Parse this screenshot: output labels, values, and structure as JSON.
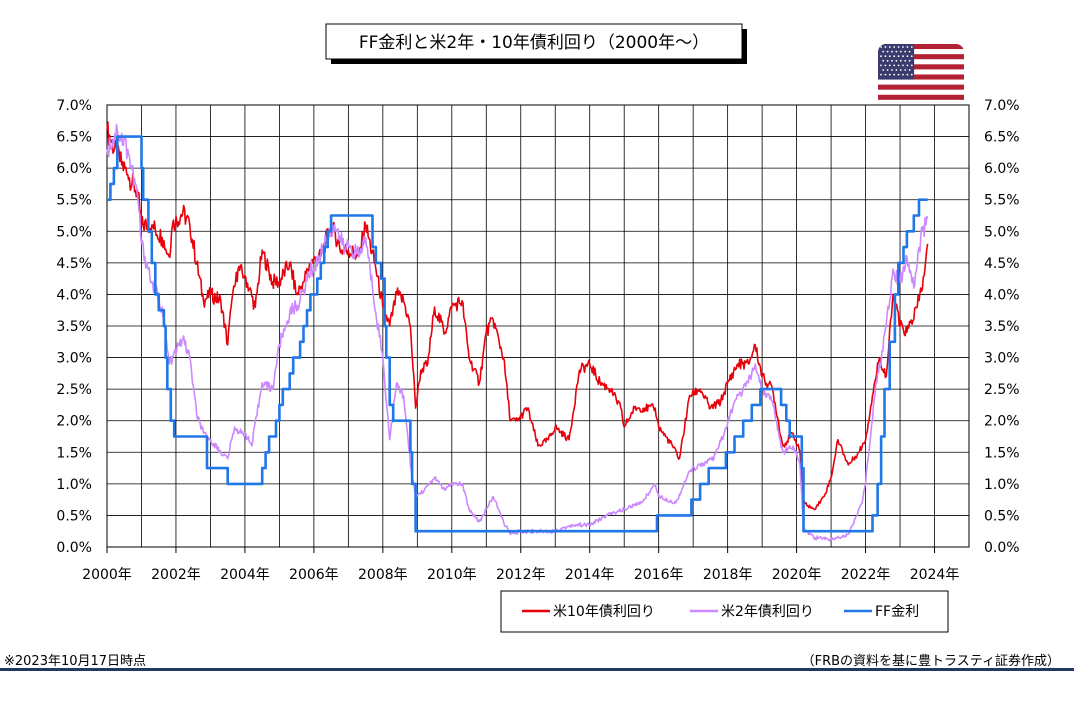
{
  "chart_data": {
    "type": "line",
    "title": "FF金利と米2年・10年債利回り（2000年～）",
    "y_ticks_left": [
      "0.0%",
      "0.5%",
      "1.0%",
      "1.5%",
      "2.0%",
      "2.5%",
      "3.0%",
      "3.5%",
      "4.0%",
      "4.5%",
      "5.0%",
      "5.5%",
      "6.0%",
      "6.5%",
      "7.0%"
    ],
    "y_ticks_right": [
      "0.0%",
      "0.5%",
      "1.0%",
      "1.5%",
      "2.0%",
      "2.5%",
      "3.0%",
      "3.5%",
      "4.0%",
      "4.5%",
      "5.0%",
      "5.5%",
      "6.0%",
      "6.5%",
      "7.0%"
    ],
    "x_ticks": [
      "2000年",
      "2002年",
      "2004年",
      "2006年",
      "2008年",
      "2010年",
      "2012年",
      "2014年",
      "2016年",
      "2018年",
      "2020年",
      "2022年",
      "2024年"
    ],
    "ylim": [
      0,
      7
    ],
    "xlim": [
      2000,
      2025
    ],
    "grid": true,
    "legend_position": "bottom-right",
    "series": [
      {
        "name": "米10年債利回り",
        "color": "#e8000b",
        "points": [
          [
            2000.0,
            6.6
          ],
          [
            2000.3,
            6.2
          ],
          [
            2000.6,
            5.9
          ],
          [
            2000.9,
            5.6
          ],
          [
            2001.0,
            5.1
          ],
          [
            2001.3,
            5.1
          ],
          [
            2001.6,
            4.9
          ],
          [
            2001.8,
            4.6
          ],
          [
            2001.9,
            5.1
          ],
          [
            2002.2,
            5.3
          ],
          [
            2002.4,
            5.1
          ],
          [
            2002.6,
            4.5
          ],
          [
            2002.8,
            3.9
          ],
          [
            2003.0,
            4.0
          ],
          [
            2003.3,
            3.9
          ],
          [
            2003.5,
            3.2
          ],
          [
            2003.6,
            3.8
          ],
          [
            2003.8,
            4.4
          ],
          [
            2004.0,
            4.3
          ],
          [
            2004.3,
            3.8
          ],
          [
            2004.5,
            4.7
          ],
          [
            2004.8,
            4.2
          ],
          [
            2005.0,
            4.2
          ],
          [
            2005.3,
            4.5
          ],
          [
            2005.5,
            4.0
          ],
          [
            2005.7,
            4.2
          ],
          [
            2005.9,
            4.5
          ],
          [
            2006.2,
            4.6
          ],
          [
            2006.5,
            5.1
          ],
          [
            2006.8,
            4.7
          ],
          [
            2007.0,
            4.7
          ],
          [
            2007.3,
            4.6
          ],
          [
            2007.5,
            5.1
          ],
          [
            2007.8,
            4.4
          ],
          [
            2008.0,
            3.8
          ],
          [
            2008.2,
            3.5
          ],
          [
            2008.4,
            4.0
          ],
          [
            2008.6,
            3.9
          ],
          [
            2008.8,
            3.5
          ],
          [
            2008.95,
            2.2
          ],
          [
            2009.1,
            2.8
          ],
          [
            2009.3,
            2.9
          ],
          [
            2009.5,
            3.8
          ],
          [
            2009.8,
            3.4
          ],
          [
            2010.0,
            3.8
          ],
          [
            2010.3,
            3.9
          ],
          [
            2010.5,
            3.0
          ],
          [
            2010.8,
            2.6
          ],
          [
            2011.0,
            3.4
          ],
          [
            2011.2,
            3.6
          ],
          [
            2011.5,
            3.0
          ],
          [
            2011.7,
            2.0
          ],
          [
            2011.9,
            2.0
          ],
          [
            2012.2,
            2.2
          ],
          [
            2012.5,
            1.6
          ],
          [
            2012.8,
            1.7
          ],
          [
            2013.0,
            1.9
          ],
          [
            2013.4,
            1.7
          ],
          [
            2013.7,
            2.8
          ],
          [
            2014.0,
            2.9
          ],
          [
            2014.3,
            2.6
          ],
          [
            2014.6,
            2.5
          ],
          [
            2014.9,
            2.2
          ],
          [
            2015.0,
            1.9
          ],
          [
            2015.3,
            2.2
          ],
          [
            2015.6,
            2.2
          ],
          [
            2015.9,
            2.2
          ],
          [
            2016.0,
            1.9
          ],
          [
            2016.4,
            1.6
          ],
          [
            2016.6,
            1.4
          ],
          [
            2016.9,
            2.4
          ],
          [
            2017.2,
            2.5
          ],
          [
            2017.5,
            2.2
          ],
          [
            2017.8,
            2.3
          ],
          [
            2018.0,
            2.6
          ],
          [
            2018.3,
            2.9
          ],
          [
            2018.6,
            2.9
          ],
          [
            2018.8,
            3.2
          ],
          [
            2019.0,
            2.7
          ],
          [
            2019.3,
            2.5
          ],
          [
            2019.6,
            1.6
          ],
          [
            2019.9,
            1.8
          ],
          [
            2020.1,
            1.5
          ],
          [
            2020.2,
            0.7
          ],
          [
            2020.5,
            0.6
          ],
          [
            2020.8,
            0.8
          ],
          [
            2021.0,
            1.1
          ],
          [
            2021.2,
            1.7
          ],
          [
            2021.5,
            1.3
          ],
          [
            2021.8,
            1.5
          ],
          [
            2022.0,
            1.7
          ],
          [
            2022.2,
            2.4
          ],
          [
            2022.4,
            3.0
          ],
          [
            2022.6,
            2.7
          ],
          [
            2022.8,
            4.0
          ],
          [
            2023.0,
            3.5
          ],
          [
            2023.2,
            3.4
          ],
          [
            2023.5,
            3.8
          ],
          [
            2023.7,
            4.3
          ],
          [
            2023.8,
            4.8
          ]
        ]
      },
      {
        "name": "米2年債利回り",
        "color": "#cc88ff",
        "points": [
          [
            2000.0,
            6.3
          ],
          [
            2000.3,
            6.6
          ],
          [
            2000.6,
            6.3
          ],
          [
            2000.9,
            5.5
          ],
          [
            2001.0,
            4.8
          ],
          [
            2001.3,
            4.2
          ],
          [
            2001.6,
            3.8
          ],
          [
            2001.8,
            2.9
          ],
          [
            2001.9,
            3.0
          ],
          [
            2002.2,
            3.3
          ],
          [
            2002.4,
            3.0
          ],
          [
            2002.6,
            2.1
          ],
          [
            2002.8,
            1.8
          ],
          [
            2003.0,
            1.7
          ],
          [
            2003.3,
            1.5
          ],
          [
            2003.5,
            1.4
          ],
          [
            2003.7,
            1.9
          ],
          [
            2003.9,
            1.8
          ],
          [
            2004.0,
            1.8
          ],
          [
            2004.2,
            1.6
          ],
          [
            2004.5,
            2.6
          ],
          [
            2004.8,
            2.5
          ],
          [
            2005.0,
            3.2
          ],
          [
            2005.3,
            3.7
          ],
          [
            2005.6,
            3.9
          ],
          [
            2005.9,
            4.4
          ],
          [
            2006.0,
            4.4
          ],
          [
            2006.4,
            4.9
          ],
          [
            2006.6,
            5.1
          ],
          [
            2006.9,
            4.7
          ],
          [
            2007.0,
            4.8
          ],
          [
            2007.3,
            4.6
          ],
          [
            2007.5,
            4.9
          ],
          [
            2007.7,
            4.1
          ],
          [
            2008.0,
            3.0
          ],
          [
            2008.2,
            1.7
          ],
          [
            2008.4,
            2.6
          ],
          [
            2008.6,
            2.4
          ],
          [
            2008.8,
            1.3
          ],
          [
            2008.95,
            0.8
          ],
          [
            2009.2,
            0.9
          ],
          [
            2009.5,
            1.1
          ],
          [
            2009.8,
            0.9
          ],
          [
            2010.0,
            1.0
          ],
          [
            2010.3,
            1.0
          ],
          [
            2010.5,
            0.6
          ],
          [
            2010.8,
            0.4
          ],
          [
            2011.0,
            0.6
          ],
          [
            2011.2,
            0.8
          ],
          [
            2011.5,
            0.4
          ],
          [
            2011.7,
            0.2
          ],
          [
            2012.0,
            0.25
          ],
          [
            2012.5,
            0.25
          ],
          [
            2013.0,
            0.25
          ],
          [
            2013.5,
            0.35
          ],
          [
            2014.0,
            0.35
          ],
          [
            2014.5,
            0.5
          ],
          [
            2015.0,
            0.6
          ],
          [
            2015.5,
            0.7
          ],
          [
            2015.9,
            1.0
          ],
          [
            2016.0,
            0.8
          ],
          [
            2016.5,
            0.7
          ],
          [
            2016.9,
            1.2
          ],
          [
            2017.2,
            1.3
          ],
          [
            2017.6,
            1.4
          ],
          [
            2017.9,
            1.8
          ],
          [
            2018.2,
            2.3
          ],
          [
            2018.6,
            2.6
          ],
          [
            2018.8,
            2.9
          ],
          [
            2019.0,
            2.5
          ],
          [
            2019.3,
            2.3
          ],
          [
            2019.6,
            1.5
          ],
          [
            2019.9,
            1.6
          ],
          [
            2020.1,
            1.3
          ],
          [
            2020.2,
            0.3
          ],
          [
            2020.5,
            0.15
          ],
          [
            2021.0,
            0.12
          ],
          [
            2021.5,
            0.2
          ],
          [
            2021.9,
            0.7
          ],
          [
            2022.0,
            1.0
          ],
          [
            2022.3,
            2.6
          ],
          [
            2022.5,
            3.1
          ],
          [
            2022.8,
            4.4
          ],
          [
            2023.0,
            4.2
          ],
          [
            2023.2,
            4.6
          ],
          [
            2023.4,
            4.1
          ],
          [
            2023.6,
            4.9
          ],
          [
            2023.8,
            5.2
          ]
        ]
      },
      {
        "name": "FF金利",
        "color": "#1f77e8",
        "step": true,
        "points": [
          [
            2000.0,
            5.5
          ],
          [
            2000.1,
            5.75
          ],
          [
            2000.2,
            6.0
          ],
          [
            2000.3,
            6.5
          ],
          [
            2001.0,
            6.0
          ],
          [
            2001.05,
            5.5
          ],
          [
            2001.2,
            5.0
          ],
          [
            2001.3,
            4.5
          ],
          [
            2001.4,
            4.0
          ],
          [
            2001.5,
            3.75
          ],
          [
            2001.65,
            3.5
          ],
          [
            2001.7,
            3.0
          ],
          [
            2001.75,
            2.5
          ],
          [
            2001.85,
            2.0
          ],
          [
            2001.95,
            1.75
          ],
          [
            2002.9,
            1.25
          ],
          [
            2003.5,
            1.0
          ],
          [
            2004.5,
            1.25
          ],
          [
            2004.6,
            1.5
          ],
          [
            2004.7,
            1.75
          ],
          [
            2004.9,
            2.0
          ],
          [
            2005.0,
            2.25
          ],
          [
            2005.1,
            2.5
          ],
          [
            2005.3,
            2.75
          ],
          [
            2005.4,
            3.0
          ],
          [
            2005.6,
            3.25
          ],
          [
            2005.7,
            3.5
          ],
          [
            2005.8,
            3.75
          ],
          [
            2005.9,
            4.0
          ],
          [
            2006.1,
            4.25
          ],
          [
            2006.2,
            4.5
          ],
          [
            2006.3,
            4.75
          ],
          [
            2006.4,
            5.0
          ],
          [
            2006.5,
            5.25
          ],
          [
            2007.7,
            4.75
          ],
          [
            2007.8,
            4.5
          ],
          [
            2007.95,
            4.25
          ],
          [
            2008.05,
            3.5
          ],
          [
            2008.1,
            3.0
          ],
          [
            2008.2,
            2.25
          ],
          [
            2008.3,
            2.0
          ],
          [
            2008.8,
            1.5
          ],
          [
            2008.85,
            1.0
          ],
          [
            2008.95,
            0.25
          ],
          [
            2015.95,
            0.5
          ],
          [
            2016.95,
            0.75
          ],
          [
            2017.2,
            1.0
          ],
          [
            2017.45,
            1.25
          ],
          [
            2017.95,
            1.5
          ],
          [
            2018.2,
            1.75
          ],
          [
            2018.45,
            2.0
          ],
          [
            2018.7,
            2.25
          ],
          [
            2018.95,
            2.5
          ],
          [
            2019.55,
            2.25
          ],
          [
            2019.7,
            2.0
          ],
          [
            2019.8,
            1.75
          ],
          [
            2020.15,
            1.25
          ],
          [
            2020.2,
            0.25
          ],
          [
            2022.2,
            0.5
          ],
          [
            2022.35,
            1.0
          ],
          [
            2022.45,
            1.75
          ],
          [
            2022.55,
            2.5
          ],
          [
            2022.7,
            3.25
          ],
          [
            2022.85,
            4.0
          ],
          [
            2022.95,
            4.5
          ],
          [
            2023.1,
            4.75
          ],
          [
            2023.2,
            5.0
          ],
          [
            2023.4,
            5.25
          ],
          [
            2023.55,
            5.5
          ],
          [
            2023.8,
            5.5
          ]
        ]
      }
    ]
  },
  "flag": {
    "name": "us-flag-icon",
    "stripe_red": "#b22234",
    "canton_blue": "#3c3b6e"
  },
  "notes": {
    "date_note": "※2023年10月17日時点",
    "source_note": "（FRBの資料を基に豊トラスティ証券作成）"
  }
}
